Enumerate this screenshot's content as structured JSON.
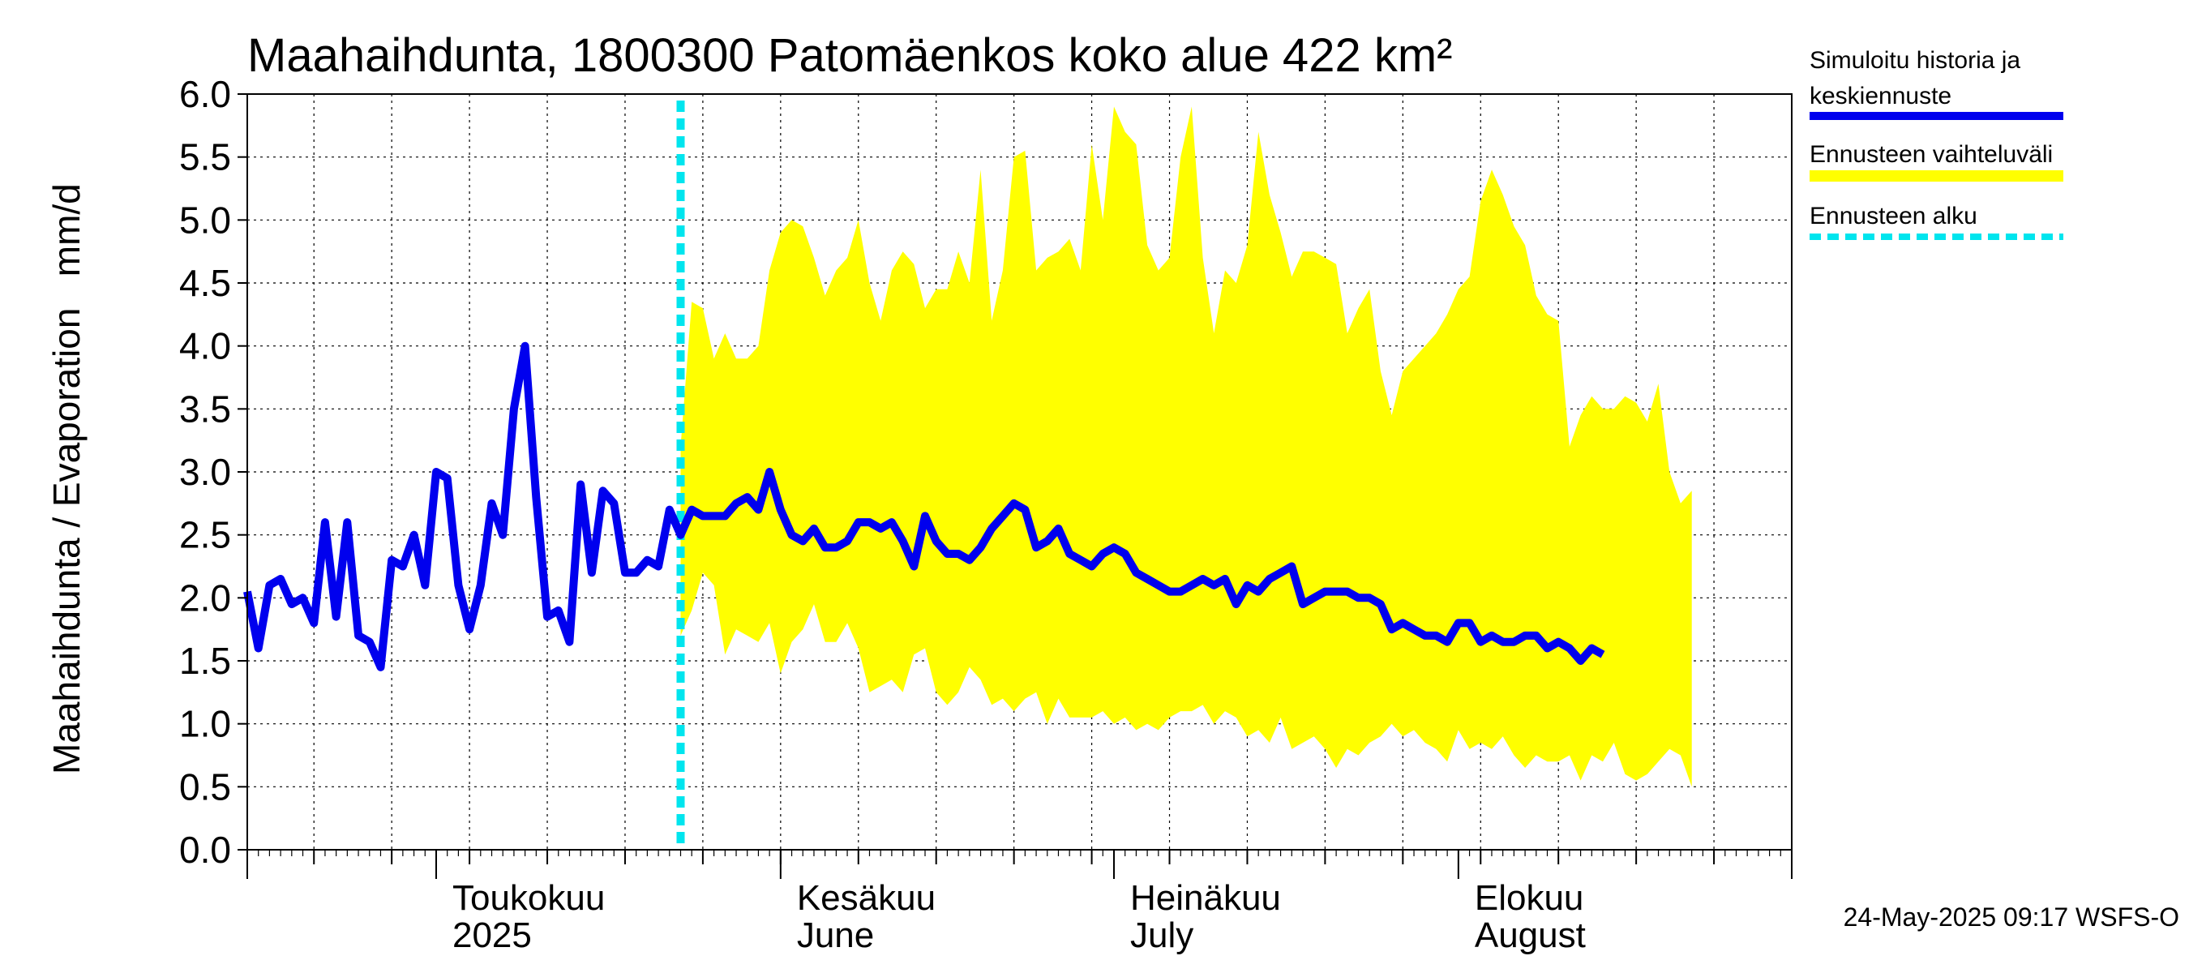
{
  "chart_data": {
    "type": "area",
    "title": "Maahaihdunta, 1800300 Patomäenkos koko alue 422 km²",
    "ylabel": "Maahaihdunta / Evaporation   mm/d",
    "ylim": [
      0,
      6
    ],
    "yticks": [
      "0.0",
      "0.5",
      "1.0",
      "1.5",
      "2.0",
      "2.5",
      "3.0",
      "3.5",
      "4.0",
      "4.5",
      "5.0",
      "5.5",
      "6.0"
    ],
    "xlim": [
      "2025-04-14",
      "2025-08-31"
    ],
    "month_labels": [
      {
        "date": "2025-05-01",
        "line1": "Toukokuu",
        "line2": "2025"
      },
      {
        "date": "2025-06-01",
        "line1": "Kesäkuu",
        "line2": "June"
      },
      {
        "date": "2025-07-01",
        "line1": "Heinäkuu",
        "line2": "July"
      },
      {
        "date": "2025-08-01",
        "line1": "Elokuu",
        "line2": "August"
      }
    ],
    "forecast_start": "2025-05-23",
    "colors": {
      "history": "#0000ee",
      "range": "#ffff00",
      "forecast_start": "#00e5ee"
    },
    "series": [
      {
        "name": "Simuloitu historia ja keskiennuste",
        "start": "2025-04-14",
        "values": [
          2.05,
          1.6,
          2.1,
          2.15,
          1.95,
          2.0,
          1.8,
          2.6,
          1.85,
          2.6,
          1.7,
          1.65,
          1.45,
          2.3,
          2.25,
          2.5,
          2.1,
          3.0,
          2.95,
          2.1,
          1.75,
          2.1,
          2.75,
          2.5,
          3.5,
          4.0,
          2.8,
          1.85,
          1.9,
          1.65,
          2.9,
          2.2,
          2.85,
          2.75,
          2.2,
          2.2,
          2.3,
          2.25,
          2.7,
          2.5,
          2.7,
          2.65,
          2.65,
          2.65,
          2.75,
          2.8,
          2.7,
          3.0,
          2.7,
          2.5,
          2.45,
          2.55,
          2.4,
          2.4,
          2.45,
          2.6,
          2.6,
          2.55,
          2.6,
          2.45,
          2.25,
          2.65,
          2.45,
          2.35,
          2.35,
          2.3,
          2.4,
          2.55,
          2.65,
          2.75,
          2.7,
          2.4,
          2.45,
          2.55,
          2.35,
          2.3,
          2.25,
          2.35,
          2.4,
          2.35,
          2.2,
          2.15,
          2.1,
          2.05,
          2.05,
          2.1,
          2.15,
          2.1,
          2.15,
          1.95,
          2.1,
          2.05,
          2.15,
          2.2,
          2.25,
          1.95,
          2.0,
          2.05,
          2.05,
          2.05,
          2.0,
          2.0,
          1.95,
          1.75,
          1.8,
          1.75,
          1.7,
          1.7,
          1.65,
          1.8,
          1.8,
          1.65,
          1.7,
          1.65,
          1.65,
          1.7,
          1.7,
          1.6,
          1.65,
          1.6,
          1.5,
          1.6,
          1.55
        ]
      },
      {
        "name": "Ennusteen vaihteluväli",
        "start": "2025-05-23",
        "upper": [
          3.2,
          4.35,
          4.3,
          3.9,
          4.1,
          3.9,
          3.9,
          4.0,
          4.6,
          4.9,
          5.0,
          4.95,
          4.7,
          4.4,
          4.6,
          4.7,
          5.0,
          4.5,
          4.2,
          4.6,
          4.75,
          4.65,
          4.3,
          4.45,
          4.45,
          4.75,
          4.5,
          5.4,
          4.2,
          4.6,
          5.5,
          5.55,
          4.6,
          4.7,
          4.75,
          4.85,
          4.6,
          5.6,
          5.0,
          5.9,
          5.7,
          5.6,
          4.8,
          4.6,
          4.7,
          5.5,
          5.9,
          4.7,
          4.1,
          4.6,
          4.5,
          4.8,
          5.7,
          5.2,
          4.9,
          4.55,
          4.75,
          4.75,
          4.7,
          4.65,
          4.1,
          4.3,
          4.45,
          3.8,
          3.45,
          3.8,
          3.9,
          4.0,
          4.1,
          4.25,
          4.45,
          4.55,
          5.15,
          5.4,
          5.2,
          4.95,
          4.8,
          4.4,
          4.25,
          4.2,
          3.2,
          3.45,
          3.6,
          3.5,
          3.5,
          3.6,
          3.55,
          3.4,
          3.7,
          3.0,
          2.75,
          2.85
        ],
        "lower": [
          1.7,
          1.9,
          2.2,
          2.1,
          1.55,
          1.75,
          1.7,
          1.65,
          1.8,
          1.4,
          1.65,
          1.75,
          1.95,
          1.65,
          1.65,
          1.8,
          1.6,
          1.25,
          1.3,
          1.35,
          1.25,
          1.55,
          1.6,
          1.25,
          1.15,
          1.25,
          1.45,
          1.35,
          1.15,
          1.2,
          1.1,
          1.2,
          1.25,
          1.0,
          1.2,
          1.05,
          1.05,
          1.05,
          1.1,
          1.0,
          1.05,
          0.95,
          1.0,
          0.95,
          1.05,
          1.1,
          1.1,
          1.15,
          1.0,
          1.1,
          1.05,
          0.9,
          0.95,
          0.85,
          1.05,
          0.8,
          0.85,
          0.9,
          0.8,
          0.65,
          0.8,
          0.75,
          0.85,
          0.9,
          1.0,
          0.9,
          0.95,
          0.85,
          0.8,
          0.7,
          0.95,
          0.8,
          0.85,
          0.8,
          0.9,
          0.75,
          0.65,
          0.75,
          0.7,
          0.7,
          0.75,
          0.55,
          0.75,
          0.7,
          0.85,
          0.6,
          0.55,
          0.6,
          0.7,
          0.8,
          0.75,
          0.5
        ]
      }
    ],
    "legend": [
      {
        "label": "Simuloitu historia ja keskiennuste",
        "lines": [
          "Simuloitu historia ja",
          "keskiennuste"
        ]
      },
      {
        "label": "Ennusteen vaihteluväli",
        "lines": [
          "Ennusteen vaihteluväli"
        ]
      },
      {
        "label": "Ennusteen alku",
        "lines": [
          "Ennusteen alku"
        ]
      }
    ],
    "timestamp": "24-May-2025 09:17 WSFS-O"
  }
}
